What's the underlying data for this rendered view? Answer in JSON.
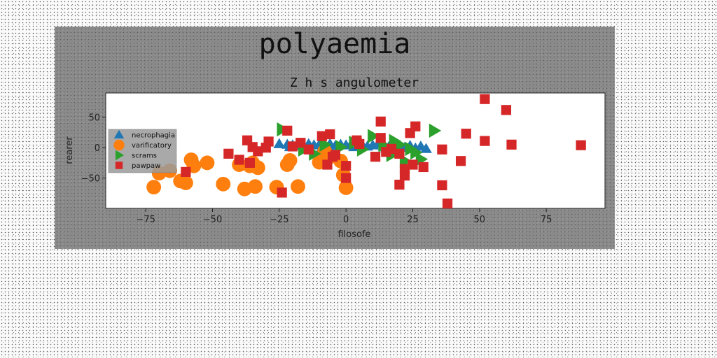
{
  "chart_data": {
    "type": "scatter",
    "title": "polyaemia",
    "subtitle": "Z h s angulometer",
    "xlabel": "filosofe",
    "ylabel": "rearer",
    "xlim": [
      -90,
      97
    ],
    "ylim": [
      -100,
      90
    ],
    "xticks": [
      -75,
      -50,
      -25,
      0,
      25,
      50,
      75
    ],
    "xtick_labels": [
      "−75",
      "−50",
      "−25",
      "0",
      "25",
      "50",
      "75"
    ],
    "yticks": [
      50,
      0,
      -50
    ],
    "ytick_labels": [
      "50",
      "0",
      "−50"
    ],
    "grid": false,
    "legend_position": "upper-left",
    "series": [
      {
        "name": "necrophagia",
        "marker": "triangle",
        "color": "#1f77b4",
        "points": [
          [
            -25,
            6
          ],
          [
            -22,
            5
          ],
          [
            -20,
            4
          ],
          [
            -18,
            5
          ],
          [
            -16,
            3
          ],
          [
            -14,
            6
          ],
          [
            -12,
            4
          ],
          [
            -10,
            5
          ],
          [
            -8,
            2
          ],
          [
            -6,
            6
          ],
          [
            -4,
            3
          ],
          [
            -2,
            5
          ],
          [
            0,
            4
          ],
          [
            2,
            6
          ],
          [
            4,
            3
          ],
          [
            6,
            5
          ],
          [
            8,
            2
          ],
          [
            10,
            4
          ],
          [
            12,
            6
          ],
          [
            14,
            3
          ],
          [
            16,
            1
          ],
          [
            18,
            4
          ],
          [
            20,
            2
          ],
          [
            22,
            0
          ],
          [
            24,
            3
          ],
          [
            26,
            -1
          ],
          [
            28,
            2
          ],
          [
            30,
            -2
          ],
          [
            -21,
            1
          ],
          [
            -9,
            0
          ],
          [
            3,
            1
          ],
          [
            15,
            -1
          ]
        ]
      },
      {
        "name": "varificatory",
        "marker": "circle",
        "color": "#ff7f0e",
        "points": [
          [
            -72,
            -65
          ],
          [
            -70,
            -42
          ],
          [
            -66,
            -38
          ],
          [
            -62,
            -55
          ],
          [
            -60,
            -58
          ],
          [
            -58,
            -20
          ],
          [
            -57,
            -30
          ],
          [
            -52,
            -25
          ],
          [
            -46,
            -60
          ],
          [
            -40,
            -28
          ],
          [
            -38,
            -68
          ],
          [
            -36,
            -30
          ],
          [
            -35,
            -25
          ],
          [
            -34,
            -64
          ],
          [
            -33,
            -33
          ],
          [
            -26,
            -65
          ],
          [
            -22,
            -28
          ],
          [
            -21,
            -21
          ],
          [
            -18,
            -64
          ],
          [
            -10,
            -24
          ],
          [
            -8,
            -6
          ],
          [
            -6,
            -15
          ],
          [
            -2,
            -22
          ],
          [
            -1,
            -45
          ],
          [
            0,
            -66
          ]
        ]
      },
      {
        "name": "scrams",
        "marker": "triangle-right",
        "color": "#2ca02c",
        "points": [
          [
            -24,
            30
          ],
          [
            -16,
            -3
          ],
          [
            -8,
            5
          ],
          [
            -2,
            1
          ],
          [
            3,
            8
          ],
          [
            10,
            19
          ],
          [
            14,
            4
          ],
          [
            17,
            -12
          ],
          [
            18,
            11
          ],
          [
            20,
            5
          ],
          [
            22,
            -22
          ],
          [
            24,
            -2
          ],
          [
            26,
            -8
          ],
          [
            28,
            -19
          ],
          [
            33,
            28
          ],
          [
            -12,
            -10
          ],
          [
            6,
            -3
          ]
        ]
      },
      {
        "name": "pawpaw",
        "marker": "square",
        "color": "#d62728",
        "points": [
          [
            52,
            80
          ],
          [
            60,
            62
          ],
          [
            13,
            43
          ],
          [
            26,
            35
          ],
          [
            -22,
            28
          ],
          [
            24,
            24
          ],
          [
            45,
            23
          ],
          [
            -6,
            22
          ],
          [
            -9,
            19
          ],
          [
            52,
            11
          ],
          [
            -37,
            12
          ],
          [
            62,
            5
          ],
          [
            -29,
            10
          ],
          [
            -17,
            8
          ],
          [
            88,
            4
          ],
          [
            4,
            12
          ],
          [
            13,
            16
          ],
          [
            -35,
            1
          ],
          [
            -30,
            0
          ],
          [
            -14,
            -3
          ],
          [
            -20,
            2
          ],
          [
            36,
            -3
          ],
          [
            -44,
            -10
          ],
          [
            -40,
            -20
          ],
          [
            -36,
            -25
          ],
          [
            -7,
            -28
          ],
          [
            -5,
            -15
          ],
          [
            0,
            -30
          ],
          [
            -4,
            -12
          ],
          [
            11,
            -15
          ],
          [
            15,
            -7
          ],
          [
            20,
            -10
          ],
          [
            22,
            -35
          ],
          [
            25,
            -28
          ],
          [
            29,
            -32
          ],
          [
            22,
            -46
          ],
          [
            43,
            -22
          ],
          [
            20,
            -61
          ],
          [
            -24,
            -74
          ],
          [
            36,
            -62
          ],
          [
            38,
            -92
          ],
          [
            -60,
            -40
          ],
          [
            0,
            -50
          ],
          [
            -33,
            -6
          ],
          [
            5,
            6
          ],
          [
            17,
            -2
          ]
        ]
      }
    ]
  }
}
